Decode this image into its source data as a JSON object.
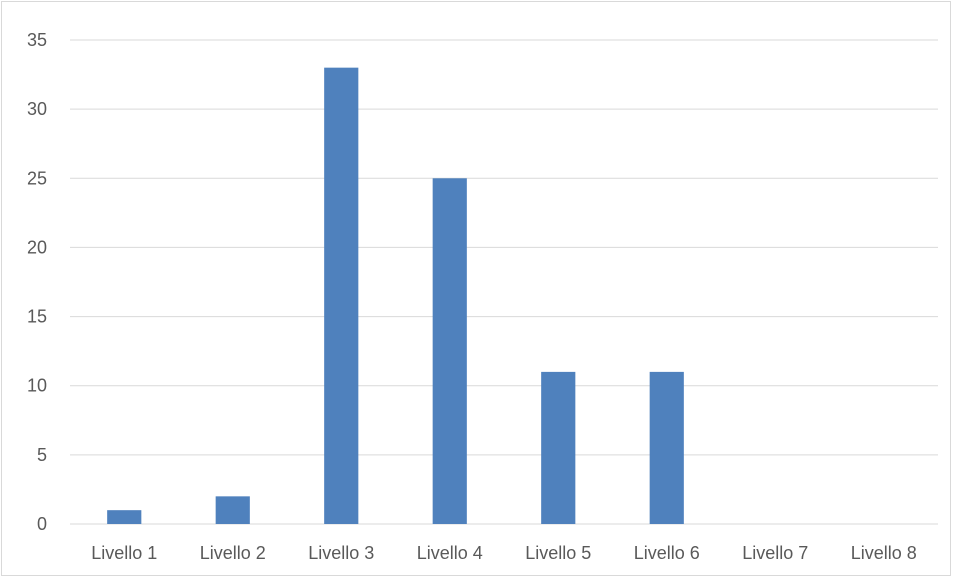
{
  "chart_data": {
    "type": "bar",
    "title": "",
    "xlabel": "",
    "ylabel": "",
    "categories": [
      "Livello 1",
      "Livello 2",
      "Livello 3",
      "Livello 4",
      "Livello 5",
      "Livello 6",
      "Livello 7",
      "Livello 8"
    ],
    "values": [
      1,
      2,
      33,
      25,
      11,
      11,
      0,
      0
    ],
    "ylim": [
      0,
      35
    ],
    "yticks": [
      0,
      5,
      10,
      15,
      20,
      25,
      30,
      35
    ],
    "grid": true,
    "legend": "none",
    "bar_color": "#4f81bd",
    "grid_color": "#d9d9d9"
  }
}
